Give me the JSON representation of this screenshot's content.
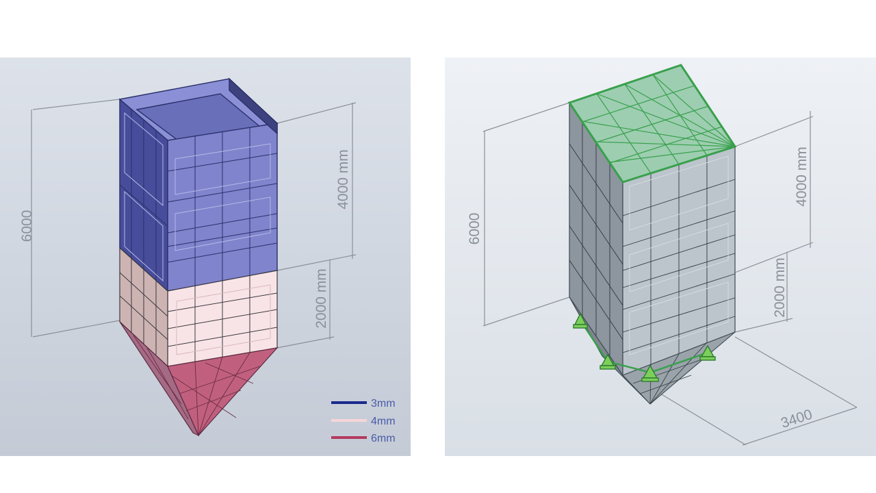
{
  "left_view": {
    "dimensions": {
      "total_height": "6000",
      "upper_height": "4000 mm",
      "lower_height": "2000 mm"
    },
    "legend": [
      {
        "label": "3mm",
        "color": "#1a2a8c"
      },
      {
        "label": "4mm",
        "color": "#f6d6d8"
      },
      {
        "label": "6mm",
        "color": "#b43a5e"
      }
    ],
    "colors": {
      "background": "#ccd3dd",
      "upper_shell": "#7f84cc",
      "middle_shell": "#f8e4e6",
      "hopper": "#c0607e"
    }
  },
  "right_view": {
    "dimensions": {
      "total_height": "6000",
      "upper_height": "4000 mm",
      "lower_height": "2000 mm",
      "width": "3400"
    },
    "colors": {
      "background": "#e3e8ee",
      "shell": "#b9c1c9",
      "top_cover": "#8fc8a4",
      "outline": "#39a04c",
      "supports": "#7ccf5a"
    }
  }
}
